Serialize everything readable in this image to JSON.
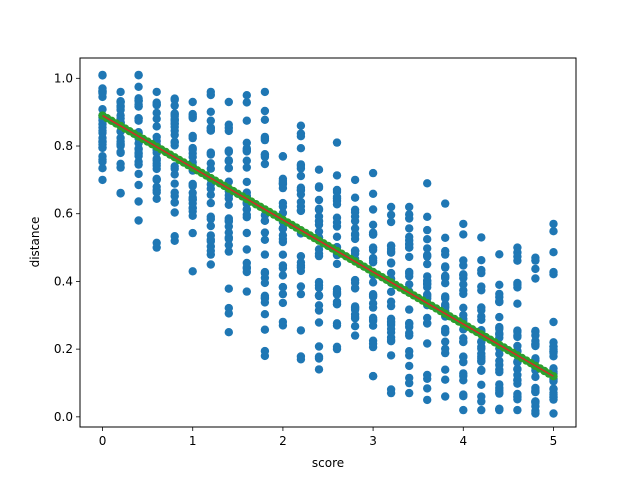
{
  "chart_data": {
    "type": "scatter",
    "xlabel": "score",
    "ylabel": "distance",
    "xlim": [
      -0.25,
      5.25
    ],
    "ylim": [
      -0.03,
      1.06
    ],
    "xticks": [
      0,
      1,
      2,
      3,
      4,
      5
    ],
    "xtick_labels": [
      "0",
      "1",
      "2",
      "3",
      "4",
      "5"
    ],
    "yticks": [
      0.0,
      0.2,
      0.4,
      0.6,
      0.8,
      1.0
    ],
    "ytick_labels": [
      "0.0",
      "0.2",
      "0.4",
      "0.6",
      "0.8",
      "1.0"
    ],
    "grid": false,
    "colors": {
      "scatter": "#1f77b4",
      "fit_line": "#d62728",
      "fit_points": "#2ca02c"
    },
    "fit_line": {
      "intercept": 0.89,
      "slope": -0.154,
      "x_range": [
        0,
        5
      ]
    },
    "scatter_summary": [
      {
        "x": 0.0,
        "y_min": 0.7,
        "y_max": 1.01
      },
      {
        "x": 0.2,
        "y_min": 0.66,
        "y_max": 0.96
      },
      {
        "x": 0.4,
        "y_min": 0.58,
        "y_max": 1.01
      },
      {
        "x": 0.6,
        "y_min": 0.5,
        "y_max": 0.96
      },
      {
        "x": 0.8,
        "y_min": 0.52,
        "y_max": 0.94
      },
      {
        "x": 1.0,
        "y_min": 0.43,
        "y_max": 0.93
      },
      {
        "x": 1.2,
        "y_min": 0.45,
        "y_max": 0.96
      },
      {
        "x": 1.4,
        "y_min": 0.25,
        "y_max": 0.93
      },
      {
        "x": 1.6,
        "y_min": 0.37,
        "y_max": 0.95
      },
      {
        "x": 1.8,
        "y_min": 0.18,
        "y_max": 0.96
      },
      {
        "x": 2.0,
        "y_min": 0.27,
        "y_max": 0.77
      },
      {
        "x": 2.2,
        "y_min": 0.17,
        "y_max": 0.86
      },
      {
        "x": 2.4,
        "y_min": 0.14,
        "y_max": 0.73
      },
      {
        "x": 2.6,
        "y_min": 0.2,
        "y_max": 0.81
      },
      {
        "x": 2.8,
        "y_min": 0.24,
        "y_max": 0.7
      },
      {
        "x": 3.0,
        "y_min": 0.12,
        "y_max": 0.72
      },
      {
        "x": 3.2,
        "y_min": 0.07,
        "y_max": 0.62
      },
      {
        "x": 3.4,
        "y_min": 0.07,
        "y_max": 0.62
      },
      {
        "x": 3.6,
        "y_min": 0.05,
        "y_max": 0.69
      },
      {
        "x": 3.8,
        "y_min": 0.06,
        "y_max": 0.63
      },
      {
        "x": 4.0,
        "y_min": 0.02,
        "y_max": 0.57
      },
      {
        "x": 4.2,
        "y_min": 0.02,
        "y_max": 0.53
      },
      {
        "x": 4.4,
        "y_min": 0.02,
        "y_max": 0.48
      },
      {
        "x": 4.6,
        "y_min": 0.02,
        "y_max": 0.5
      },
      {
        "x": 4.8,
        "y_min": 0.01,
        "y_max": 0.47
      },
      {
        "x": 5.0,
        "y_min": 0.01,
        "y_max": 0.57
      }
    ]
  }
}
